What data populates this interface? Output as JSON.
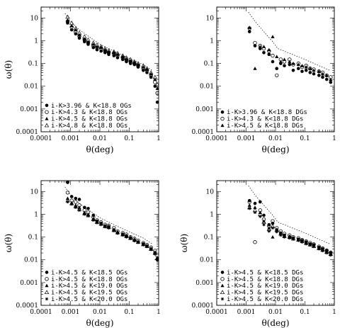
{
  "chart_data": [
    {
      "type": "scatter",
      "panel": "top-left",
      "xscale": "log",
      "yscale": "log",
      "xlim": [
        0.0001,
        1
      ],
      "ylim": [
        0.0001,
        30
      ],
      "xlabel": "θ(deg)",
      "ylabel": "ω(θ)",
      "xticks": [
        "0.0001",
        "0.001",
        "0.01",
        "0.1",
        "1"
      ],
      "yticks": [
        "0.0001",
        "0.001",
        "0.01",
        "0.1",
        "1",
        "10"
      ],
      "legend_position": "bottom-left",
      "fit_line": {
        "x": [
          0.00065,
          0.001,
          0.002,
          0.005,
          0.01,
          0.03,
          0.1,
          0.3,
          0.6
        ],
        "y": [
          16,
          7,
          3,
          1.3,
          0.7,
          0.35,
          0.17,
          0.09,
          0.05
        ]
      },
      "series": [
        {
          "name": "i-K>3.96 & K<18.8 OGs",
          "marker": "filled-circle",
          "x": [
            0.0008,
            0.0011,
            0.0015,
            0.002,
            0.003,
            0.004,
            0.006,
            0.008,
            0.011,
            0.015,
            0.02,
            0.03,
            0.04,
            0.06,
            0.08,
            0.11,
            0.15,
            0.2,
            0.3,
            0.4,
            0.55,
            0.75,
            0.9
          ],
          "y": [
            6,
            3,
            2,
            1.3,
            0.9,
            0.7,
            0.5,
            0.4,
            0.35,
            0.3,
            0.25,
            0.22,
            0.18,
            0.15,
            0.12,
            0.1,
            0.09,
            0.07,
            0.05,
            0.04,
            0.025,
            0.01,
            0.002
          ]
        },
        {
          "name": "i-K>4.3 & K<18.8 OGs",
          "marker": "open-circle",
          "x": [
            0.0008,
            0.0011,
            0.0015,
            0.002,
            0.003,
            0.004,
            0.006,
            0.008,
            0.011,
            0.015,
            0.02,
            0.03,
            0.04,
            0.06,
            0.08,
            0.11,
            0.15,
            0.2,
            0.3,
            0.4,
            0.55,
            0.75,
            0.9
          ],
          "y": [
            7,
            4,
            2.5,
            1.6,
            1.1,
            0.8,
            0.6,
            0.5,
            0.45,
            0.35,
            0.3,
            0.27,
            0.22,
            0.18,
            0.14,
            0.12,
            0.1,
            0.08,
            0.06,
            0.05,
            0.03,
            0.015,
            0.005
          ]
        },
        {
          "name": "i-K>4.5 & K<18.8 OGs",
          "marker": "filled-triangle",
          "x": [
            0.0008,
            0.0011,
            0.0015,
            0.002,
            0.003,
            0.004,
            0.006,
            0.008,
            0.011,
            0.015,
            0.02,
            0.03,
            0.04,
            0.06,
            0.08,
            0.11,
            0.15,
            0.2,
            0.3,
            0.4,
            0.55,
            0.75,
            0.9
          ],
          "y": [
            8,
            4.5,
            3,
            1.8,
            1.2,
            0.9,
            0.7,
            0.55,
            0.5,
            0.4,
            0.33,
            0.3,
            0.25,
            0.2,
            0.16,
            0.13,
            0.11,
            0.09,
            0.07,
            0.055,
            0.035,
            0.02,
            0.008
          ]
        },
        {
          "name": "i-K>4.8 & K<18.8 OGs",
          "marker": "open-triangle",
          "x": [
            0.0008,
            0.0011,
            0.0015,
            0.002,
            0.003,
            0.004,
            0.006,
            0.008,
            0.011,
            0.015,
            0.02,
            0.03,
            0.04,
            0.06,
            0.08,
            0.11,
            0.15,
            0.2,
            0.3,
            0.4,
            0.55,
            0.75,
            0.9
          ],
          "y": [
            11,
            6,
            3.5,
            2.2,
            1.5,
            1.1,
            0.8,
            0.65,
            0.55,
            0.45,
            0.37,
            0.33,
            0.28,
            0.22,
            0.18,
            0.15,
            0.12,
            0.1,
            0.08,
            0.06,
            0.04,
            0.025,
            0.012
          ]
        }
      ]
    },
    {
      "type": "scatter",
      "panel": "top-right",
      "xscale": "log",
      "yscale": "log",
      "xlim": [
        0.0001,
        1
      ],
      "ylim": [
        0.0001,
        30
      ],
      "xlabel": "θ(deg)",
      "ylabel": "",
      "xticks": [
        "0.0001",
        "0.001",
        "0.01",
        "0.1",
        "1"
      ],
      "yticks": [
        "0.0001",
        "0.001",
        "0.01",
        "0.1",
        "1",
        "10"
      ],
      "legend_position": "bottom-left",
      "fit_line": {
        "x": [
          0.0012,
          0.002,
          0.004,
          0.008,
          0.012,
          0.03,
          0.1,
          0.3,
          0.7
        ],
        "y": [
          18,
          7,
          2.5,
          0.9,
          0.45,
          0.28,
          0.15,
          0.08,
          0.05
        ]
      },
      "series": [
        {
          "name": "i-K>3.96 & K<18.8 DGs",
          "marker": "filled-circle",
          "x": [
            0.0013,
            0.002,
            0.003,
            0.004,
            0.006,
            0.008,
            0.011,
            0.015,
            0.02,
            0.03,
            0.04,
            0.06,
            0.08,
            0.11,
            0.15,
            0.2,
            0.3,
            0.4,
            0.55,
            0.75
          ],
          "y": [
            2.5,
            0.6,
            0.45,
            0.3,
            0.25,
            0.12,
            0.06,
            0.1,
            0.08,
            0.09,
            0.05,
            0.06,
            0.045,
            0.05,
            0.04,
            0.035,
            0.03,
            0.025,
            0.02,
            0.015
          ]
        },
        {
          "name": "i-K>4.3 & K<18.8 DGs",
          "marker": "open-circle",
          "x": [
            0.0013,
            0.002,
            0.003,
            0.004,
            0.006,
            0.008,
            0.011,
            0.015,
            0.02,
            0.03,
            0.04,
            0.06,
            0.08,
            0.11,
            0.15,
            0.2,
            0.3,
            0.4,
            0.55,
            0.75
          ],
          "y": [
            3.5,
            0.8,
            0.6,
            0.45,
            0.35,
            0.22,
            0.03,
            0.15,
            0.12,
            0.15,
            0.09,
            0.1,
            0.07,
            0.08,
            0.06,
            0.055,
            0.045,
            0.04,
            0.03,
            0.025
          ]
        },
        {
          "name": "i-K>4.5 & K<18.8 DGs",
          "marker": "filled-triangle",
          "x": [
            0.0013,
            0.002,
            0.003,
            0.004,
            0.006,
            0.008,
            0.011,
            0.015,
            0.02,
            0.03,
            0.04,
            0.06,
            0.08,
            0.11,
            0.15,
            0.2,
            0.3,
            0.4,
            0.55,
            0.75
          ],
          "y": [
            3.8,
            0.06,
            0.55,
            0.55,
            0.4,
            1.5,
            0.2,
            0.12,
            0.15,
            0.12,
            0.1,
            0.09,
            0.08,
            0.07,
            0.06,
            0.05,
            0.045,
            0.035,
            0.03,
            0.02
          ]
        }
      ]
    },
    {
      "type": "scatter",
      "panel": "bottom-left",
      "xscale": "log",
      "yscale": "log",
      "xlim": [
        0.0001,
        1
      ],
      "ylim": [
        0.0001,
        30
      ],
      "xlabel": "θ(deg)",
      "ylabel": "ω(θ)",
      "xticks": [
        "0.0001",
        "0.001",
        "0.01",
        "0.1",
        "1"
      ],
      "yticks": [
        "0.0001",
        "0.001",
        "0.01",
        "0.1",
        "1",
        "10"
      ],
      "legend_position": "bottom-left",
      "fit_line": {
        "x": [
          0.00065,
          0.001,
          0.002,
          0.005,
          0.01,
          0.03,
          0.1,
          0.3,
          0.6
        ],
        "y": [
          16,
          7,
          3,
          1.3,
          0.7,
          0.35,
          0.17,
          0.09,
          0.05
        ]
      },
      "series": [
        {
          "name": "i-K>4.5 & K<18.5 OGs",
          "marker": "filled-circle",
          "x": [
            0.0008,
            0.0011,
            0.0015,
            0.002,
            0.003,
            0.004,
            0.006,
            0.008,
            0.011,
            0.015,
            0.02,
            0.03,
            0.04,
            0.06,
            0.08,
            0.11,
            0.15,
            0.2,
            0.3,
            0.4,
            0.55,
            0.75,
            0.9
          ],
          "y": [
            25,
            6,
            5,
            4.5,
            2,
            1.8,
            0.9,
            0.5,
            0.4,
            0.3,
            0.28,
            0.2,
            0.15,
            0.13,
            0.11,
            0.09,
            0.07,
            0.06,
            0.05,
            0.04,
            0.03,
            0.02,
            0.01
          ]
        },
        {
          "name": "i-K>4.5 & K<18.8 OGs",
          "marker": "open-circle",
          "x": [
            0.0008,
            0.0011,
            0.0015,
            0.002,
            0.003,
            0.004,
            0.006,
            0.008,
            0.011,
            0.015,
            0.02,
            0.03,
            0.04,
            0.06,
            0.08,
            0.11,
            0.15,
            0.2,
            0.3,
            0.4,
            0.55,
            0.75,
            0.9
          ],
          "y": [
            9,
            4,
            3.5,
            2.5,
            1.5,
            1.2,
            0.75,
            0.55,
            0.45,
            0.35,
            0.32,
            0.25,
            0.18,
            0.15,
            0.13,
            0.1,
            0.085,
            0.07,
            0.055,
            0.045,
            0.035,
            0.025,
            0.015
          ]
        },
        {
          "name": "i-K>4.5 & K<19.0 OGs",
          "marker": "filled-triangle",
          "x": [
            0.0008,
            0.0011,
            0.0015,
            0.002,
            0.003,
            0.004,
            0.006,
            0.008,
            0.011,
            0.015,
            0.02,
            0.03,
            0.04,
            0.06,
            0.08,
            0.11,
            0.15,
            0.2,
            0.3,
            0.4,
            0.55,
            0.75,
            0.9
          ],
          "y": [
            5,
            3.2,
            2.5,
            2,
            1.2,
            1,
            0.65,
            0.5,
            0.4,
            0.32,
            0.3,
            0.22,
            0.17,
            0.14,
            0.12,
            0.095,
            0.08,
            0.065,
            0.05,
            0.042,
            0.032,
            0.022,
            0.012
          ]
        },
        {
          "name": "i-K>4.5 & K<19.5 OGs",
          "marker": "open-triangle",
          "x": [
            0.0008,
            0.0011,
            0.0015,
            0.002,
            0.003,
            0.004,
            0.006,
            0.008,
            0.011,
            0.015,
            0.02,
            0.03,
            0.04,
            0.06,
            0.08,
            0.11,
            0.15,
            0.2,
            0.3,
            0.4,
            0.55,
            0.75,
            0.9
          ],
          "y": [
            4,
            3,
            2.2,
            1.7,
            1.1,
            0.9,
            0.6,
            0.45,
            0.38,
            0.3,
            0.27,
            0.2,
            0.16,
            0.13,
            0.11,
            0.09,
            0.075,
            0.06,
            0.048,
            0.04,
            0.03,
            0.02,
            0.012
          ]
        },
        {
          "name": "i-K>4.5 & K<20.0 OGs",
          "marker": "asterisk",
          "x": [
            0.0008,
            0.0011,
            0.0015,
            0.002,
            0.003,
            0.004,
            0.006,
            0.008,
            0.011,
            0.015,
            0.02,
            0.03,
            0.04,
            0.06,
            0.08,
            0.11,
            0.15,
            0.2,
            0.3,
            0.4,
            0.55,
            0.75,
            0.9
          ],
          "y": [
            3.5,
            2.8,
            2,
            1.5,
            1,
            0.85,
            0.55,
            0.42,
            0.35,
            0.28,
            0.25,
            0.19,
            0.15,
            0.12,
            0.1,
            0.085,
            0.07,
            0.058,
            0.045,
            0.038,
            0.028,
            0.018,
            0.011
          ]
        }
      ]
    },
    {
      "type": "scatter",
      "panel": "bottom-right",
      "xscale": "log",
      "yscale": "log",
      "xlim": [
        0.0001,
        1
      ],
      "ylim": [
        0.0001,
        30
      ],
      "xlabel": "θ(deg)",
      "ylabel": "ω(θ)",
      "xticks": [
        "0.0001",
        "0.001",
        "0.01",
        "0.1",
        "1"
      ],
      "yticks": [
        "0.0001",
        "0.001",
        "0.01",
        "0.1",
        "1",
        "10"
      ],
      "legend_position": "bottom-left",
      "fit_line": {
        "x": [
          0.0012,
          0.002,
          0.004,
          0.008,
          0.012,
          0.03,
          0.1,
          0.3,
          0.7
        ],
        "y": [
          18,
          7,
          2.5,
          0.9,
          0.45,
          0.28,
          0.15,
          0.08,
          0.05
        ]
      },
      "series": [
        {
          "name": "i-K>4.5 & K<18.5 DGs",
          "marker": "filled-circle",
          "x": [
            0.0013,
            0.002,
            0.003,
            0.004,
            0.006,
            0.008,
            0.011,
            0.015,
            0.02,
            0.03,
            0.04,
            0.06,
            0.08,
            0.11,
            0.15,
            0.2,
            0.3,
            0.4,
            0.55,
            0.75
          ],
          "y": [
            4,
            3,
            3.5,
            0.9,
            0.35,
            0.4,
            0.2,
            0.15,
            0.12,
            0.1,
            0.09,
            0.08,
            0.07,
            0.06,
            0.05,
            0.045,
            0.035,
            0.03,
            0.025,
            0.02
          ]
        },
        {
          "name": "i-K>4.5 & K<18.8 DGs",
          "marker": "open-circle",
          "x": [
            0.0013,
            0.002,
            0.003,
            0.004,
            0.006,
            0.008,
            0.011,
            0.015,
            0.02,
            0.03,
            0.04,
            0.06,
            0.08,
            0.11,
            0.15,
            0.2,
            0.3,
            0.4,
            0.55,
            0.75
          ],
          "y": [
            3.5,
            0.06,
            1.5,
            0.6,
            0.3,
            0.5,
            0.25,
            0.18,
            0.14,
            0.12,
            0.1,
            0.09,
            0.075,
            0.065,
            0.055,
            0.048,
            0.038,
            0.032,
            0.026,
            0.021
          ]
        },
        {
          "name": "i-K>4.5 & K<19.0 DGs",
          "marker": "filled-triangle",
          "x": [
            0.0013,
            0.002,
            0.003,
            0.004,
            0.006,
            0.008,
            0.011,
            0.015,
            0.02,
            0.03,
            0.04,
            0.06,
            0.08,
            0.11,
            0.15,
            0.2,
            0.3,
            0.4,
            0.55,
            0.75
          ],
          "y": [
            2.5,
            2,
            1.2,
            0.5,
            0.25,
            0.1,
            0.22,
            0.15,
            0.12,
            0.11,
            0.09,
            0.08,
            0.07,
            0.06,
            0.05,
            0.043,
            0.034,
            0.029,
            0.024,
            0.019
          ]
        },
        {
          "name": "i-K>4.5 & K<19.5 DGs",
          "marker": "open-triangle",
          "x": [
            0.0013,
            0.002,
            0.003,
            0.004,
            0.006,
            0.008,
            0.011,
            0.015,
            0.02,
            0.03,
            0.04,
            0.06,
            0.08,
            0.11,
            0.15,
            0.2,
            0.3,
            0.4,
            0.55,
            0.75
          ],
          "y": [
            2,
            1.5,
            1,
            0.45,
            0.22,
            0.3,
            0.2,
            0.14,
            0.11,
            0.1,
            0.085,
            0.075,
            0.065,
            0.055,
            0.047,
            0.04,
            0.032,
            0.027,
            0.022,
            0.018
          ]
        },
        {
          "name": "i-K>4.5 & K<20.0 DGs",
          "marker": "asterisk",
          "x": [
            0.0013,
            0.002,
            0.003,
            0.004,
            0.006,
            0.008,
            0.011,
            0.015,
            0.02,
            0.03,
            0.04,
            0.06,
            0.08,
            0.11,
            0.15,
            0.2,
            0.3,
            0.4,
            0.55,
            0.75
          ],
          "y": [
            1.8,
            1.2,
            0.8,
            0.35,
            0.18,
            0.25,
            0.17,
            0.12,
            0.1,
            0.09,
            0.08,
            0.07,
            0.06,
            0.05,
            0.044,
            0.038,
            0.03,
            0.025,
            0.02,
            0.016
          ]
        }
      ]
    }
  ]
}
